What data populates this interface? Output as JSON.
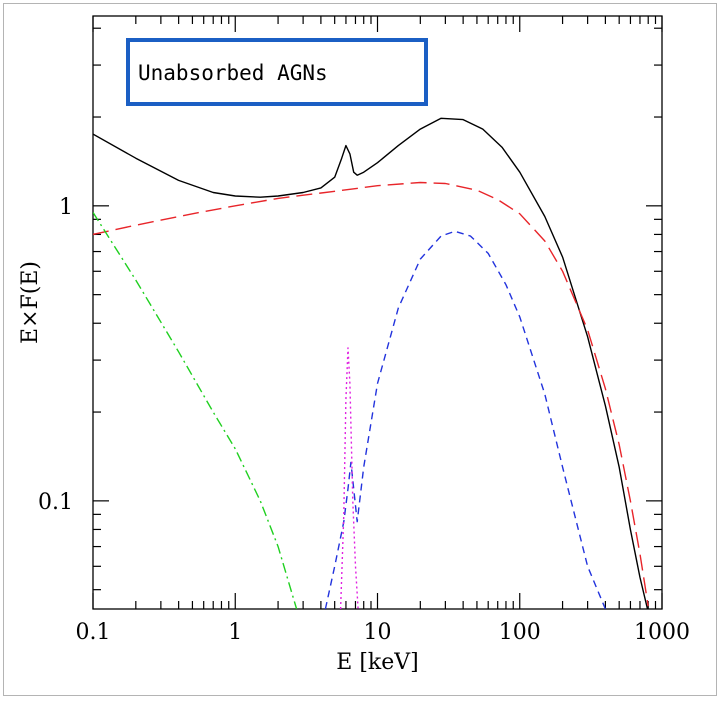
{
  "chart_data": {
    "type": "line",
    "title": "",
    "xlabel": "E [keV]",
    "ylabel": "E×F(E)",
    "x_scale": "log",
    "y_scale": "log",
    "xlim": [
      0.1,
      1000
    ],
    "ylim": [
      0.043,
      4.4
    ],
    "x_tick_labels": [
      "0.1",
      "1",
      "10",
      "100",
      "1000"
    ],
    "x_tick_values": [
      0.1,
      1,
      10,
      100,
      1000
    ],
    "y_tick_labels": [
      "1",
      "0.1"
    ],
    "y_tick_values": [
      1,
      0.1
    ],
    "grid": false,
    "legend_box": {
      "text": "Unabsorbed AGNs",
      "border_color": "#1b5fc4",
      "placement": "top-left"
    },
    "series": [
      {
        "color": "#000000",
        "dash": "solid",
        "points": [
          [
            0.1,
            1.75
          ],
          [
            0.2,
            1.45
          ],
          [
            0.4,
            1.22
          ],
          [
            0.7,
            1.11
          ],
          [
            1,
            1.08
          ],
          [
            1.5,
            1.07
          ],
          [
            2,
            1.08
          ],
          [
            3,
            1.11
          ],
          [
            4,
            1.15
          ],
          [
            5,
            1.25
          ],
          [
            5.6,
            1.45
          ],
          [
            6.0,
            1.6
          ],
          [
            6.4,
            1.5
          ],
          [
            6.8,
            1.3
          ],
          [
            7.2,
            1.27
          ],
          [
            8,
            1.3
          ],
          [
            10,
            1.4
          ],
          [
            14,
            1.6
          ],
          [
            20,
            1.82
          ],
          [
            28,
            1.98
          ],
          [
            40,
            1.96
          ],
          [
            55,
            1.82
          ],
          [
            75,
            1.58
          ],
          [
            100,
            1.3
          ],
          [
            150,
            0.92
          ],
          [
            200,
            0.67
          ],
          [
            300,
            0.36
          ],
          [
            400,
            0.21
          ],
          [
            500,
            0.13
          ],
          [
            600,
            0.08
          ],
          [
            700,
            0.055
          ],
          [
            800,
            0.042
          ]
        ]
      },
      {
        "color": "#e8252a",
        "dash": "long",
        "points": [
          [
            0.1,
            0.8
          ],
          [
            0.2,
            0.86
          ],
          [
            0.5,
            0.94
          ],
          [
            1,
            1.0
          ],
          [
            2,
            1.06
          ],
          [
            5,
            1.12
          ],
          [
            10,
            1.17
          ],
          [
            20,
            1.2
          ],
          [
            30,
            1.19
          ],
          [
            50,
            1.13
          ],
          [
            70,
            1.05
          ],
          [
            100,
            0.94
          ],
          [
            150,
            0.76
          ],
          [
            200,
            0.6
          ],
          [
            300,
            0.38
          ],
          [
            400,
            0.24
          ],
          [
            500,
            0.155
          ],
          [
            600,
            0.1
          ],
          [
            700,
            0.066
          ],
          [
            800,
            0.044
          ]
        ]
      },
      {
        "color": "#2233dd",
        "dash": "short",
        "points": [
          [
            4.3,
            0.043
          ],
          [
            5,
            0.06
          ],
          [
            5.8,
            0.085
          ],
          [
            6.2,
            0.11
          ],
          [
            6.5,
            0.135
          ],
          [
            6.8,
            0.11
          ],
          [
            7.2,
            0.085
          ],
          [
            8,
            0.13
          ],
          [
            10,
            0.25
          ],
          [
            14,
            0.45
          ],
          [
            20,
            0.66
          ],
          [
            28,
            0.79
          ],
          [
            35,
            0.82
          ],
          [
            45,
            0.79
          ],
          [
            60,
            0.69
          ],
          [
            80,
            0.54
          ],
          [
            100,
            0.42
          ],
          [
            150,
            0.23
          ],
          [
            200,
            0.13
          ],
          [
            300,
            0.06
          ],
          [
            400,
            0.043
          ]
        ]
      },
      {
        "color": "#e020e0",
        "dash": "dotted",
        "points": [
          [
            5.5,
            0.043
          ],
          [
            5.8,
            0.09
          ],
          [
            6.0,
            0.22
          ],
          [
            6.2,
            0.33
          ],
          [
            6.4,
            0.25
          ],
          [
            6.7,
            0.1
          ],
          [
            7.0,
            0.06
          ],
          [
            7.3,
            0.043
          ]
        ]
      },
      {
        "color": "#20d020",
        "dash": "dashdot",
        "points": [
          [
            0.1,
            0.95
          ],
          [
            0.2,
            0.56
          ],
          [
            0.4,
            0.32
          ],
          [
            0.7,
            0.2
          ],
          [
            1,
            0.15
          ],
          [
            1.5,
            0.1
          ],
          [
            2,
            0.07
          ],
          [
            2.7,
            0.043
          ]
        ]
      }
    ]
  }
}
